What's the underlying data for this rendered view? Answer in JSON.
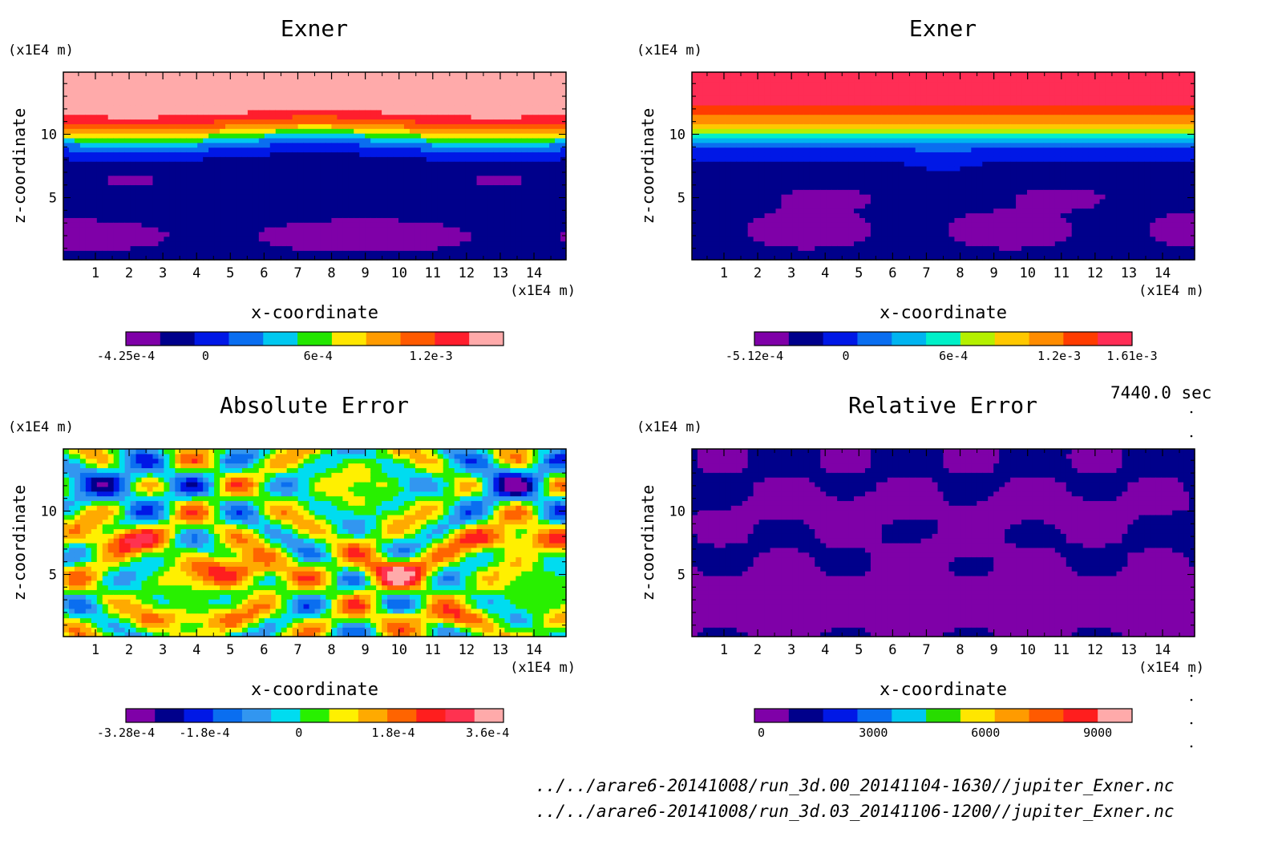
{
  "chart_data": [
    {
      "type": "heatmap",
      "title": "Exner",
      "xlabel": "x-coordinate",
      "ylabel": "z-coordinate",
      "xunit": "(x1E4 m)",
      "yunit": "(x1E4 m)",
      "xlim": [
        0.05,
        14.95
      ],
      "ylim": [
        0.1,
        14.9
      ],
      "xticks": [
        1,
        2,
        3,
        4,
        5,
        6,
        7,
        8,
        9,
        10,
        11,
        12,
        13,
        14
      ],
      "yticks": [
        5,
        10
      ],
      "field": "exnerA",
      "levels": [
        "#7f00a8",
        "#00008b",
        "#0018e6",
        "#0a6ef0",
        "#00c8f0",
        "#23e600",
        "#ffe600",
        "#ff9b00",
        "#ff5a00",
        "#ff1e2d",
        "#ffaaaa"
      ],
      "colorbar": {
        "colors": [
          "#7f00a8",
          "#00008b",
          "#0018e6",
          "#0a6ef0",
          "#00c8f0",
          "#23e600",
          "#ffe600",
          "#ff9b00",
          "#ff5a00",
          "#ff1e2d",
          "#ffaaaa"
        ],
        "labels": [
          {
            "text": "-4.25e-4",
            "frac": 0.0
          },
          {
            "text": "0",
            "frac": 0.211
          },
          {
            "text": "6e-4",
            "frac": 0.509
          },
          {
            "text": "1.2e-3",
            "frac": 0.808
          }
        ]
      }
    },
    {
      "type": "heatmap",
      "title": "Exner",
      "xlabel": "x-coordinate",
      "ylabel": "z-coordinate",
      "xunit": "(x1E4 m)",
      "yunit": "(x1E4 m)",
      "xlim": [
        0.05,
        14.95
      ],
      "ylim": [
        0.1,
        14.9
      ],
      "xticks": [
        1,
        2,
        3,
        4,
        5,
        6,
        7,
        8,
        9,
        10,
        11,
        12,
        13,
        14
      ],
      "yticks": [
        5,
        10
      ],
      "field": "exnerB",
      "levels": [
        "#7f00a8",
        "#00008b",
        "#0018e6",
        "#0a6ef0",
        "#00b4f0",
        "#00f0c8",
        "#b4f000",
        "#ffc800",
        "#ff8c00",
        "#ff3c00",
        "#ff2d55"
      ],
      "colorbar": {
        "colors": [
          "#7f00a8",
          "#00008b",
          "#0018e6",
          "#0a6ef0",
          "#00b4f0",
          "#00f0c8",
          "#b4f000",
          "#ffc800",
          "#ff8c00",
          "#ff3c00",
          "#ff2d55"
        ],
        "labels": [
          {
            "text": "-5.12e-4",
            "frac": 0.0
          },
          {
            "text": "0",
            "frac": 0.242
          },
          {
            "text": "6e-4",
            "frac": 0.527
          },
          {
            "text": "1.2e-3",
            "frac": 0.807
          },
          {
            "text": "1.61e-3",
            "frac": 1.0
          }
        ]
      }
    },
    {
      "type": "heatmap",
      "title": "Absolute Error",
      "xlabel": "x-coordinate",
      "ylabel": "z-coordinate",
      "xunit": "(x1E4 m)",
      "yunit": "(x1E4 m)",
      "xlim": [
        0.05,
        14.95
      ],
      "ylim": [
        0.1,
        14.9
      ],
      "xticks": [
        1,
        2,
        3,
        4,
        5,
        6,
        7,
        8,
        9,
        10,
        11,
        12,
        13,
        14
      ],
      "yticks": [
        5,
        10
      ],
      "field": "absErr",
      "levels": [
        "#7f00a8",
        "#00008b",
        "#0018e6",
        "#0a6ef0",
        "#3296f0",
        "#00dcf0",
        "#28f000",
        "#fff000",
        "#ffaa00",
        "#ff6400",
        "#ff1e1e",
        "#ff3250",
        "#ffaaaa"
      ],
      "colorbar": {
        "colors": [
          "#7f00a8",
          "#00008b",
          "#0018e6",
          "#0a6ef0",
          "#3296f0",
          "#00dcf0",
          "#28f000",
          "#fff000",
          "#ffaa00",
          "#ff6400",
          "#ff1e1e",
          "#ff3250",
          "#ffaaaa"
        ],
        "labels": [
          {
            "text": "-3.28e-4",
            "frac": 0.0
          },
          {
            "text": "-1.8e-4",
            "frac": 0.208
          },
          {
            "text": "0",
            "frac": 0.458
          },
          {
            "text": "1.8e-4",
            "frac": 0.708
          },
          {
            "text": "3.6e-4",
            "frac": 0.958
          }
        ]
      }
    },
    {
      "type": "heatmap",
      "title": "Relative Error",
      "xlabel": "x-coordinate",
      "ylabel": "z-coordinate",
      "xunit": "(x1E4 m)",
      "yunit": "(x1E4 m)",
      "xlim": [
        0.05,
        14.95
      ],
      "ylim": [
        0.1,
        14.9
      ],
      "xticks": [
        1,
        2,
        3,
        4,
        5,
        6,
        7,
        8,
        9,
        10,
        11,
        12,
        13,
        14
      ],
      "yticks": [
        5,
        10
      ],
      "field": "relErr",
      "levels": [
        "#7f00a8",
        "#00008b",
        "#0018e6",
        "#0a6ef0",
        "#00c8f0",
        "#28dc00",
        "#ffe600",
        "#ff9b00",
        "#ff5a00",
        "#ff1e1e",
        "#ffaaaa"
      ],
      "colorbar": {
        "colors": [
          "#7f00a8",
          "#00008b",
          "#0018e6",
          "#0a6ef0",
          "#00c8f0",
          "#28dc00",
          "#ffe600",
          "#ff9b00",
          "#ff5a00",
          "#ff1e1e",
          "#ffaaaa"
        ],
        "labels": [
          {
            "text": "0",
            "frac": 0.018
          },
          {
            "text": "3000",
            "frac": 0.315
          },
          {
            "text": "6000",
            "frac": 0.612
          },
          {
            "text": "9000",
            "frac": 0.909
          }
        ]
      }
    }
  ],
  "time_label": "7440.0 sec",
  "file_paths": [
    "../../arare6-20141008/run_3d.00_20141104-1630//jupiter_Exner.nc",
    "../../arare6-20141008/run_3d.03_20141106-1200//jupiter_Exner.nc"
  ]
}
